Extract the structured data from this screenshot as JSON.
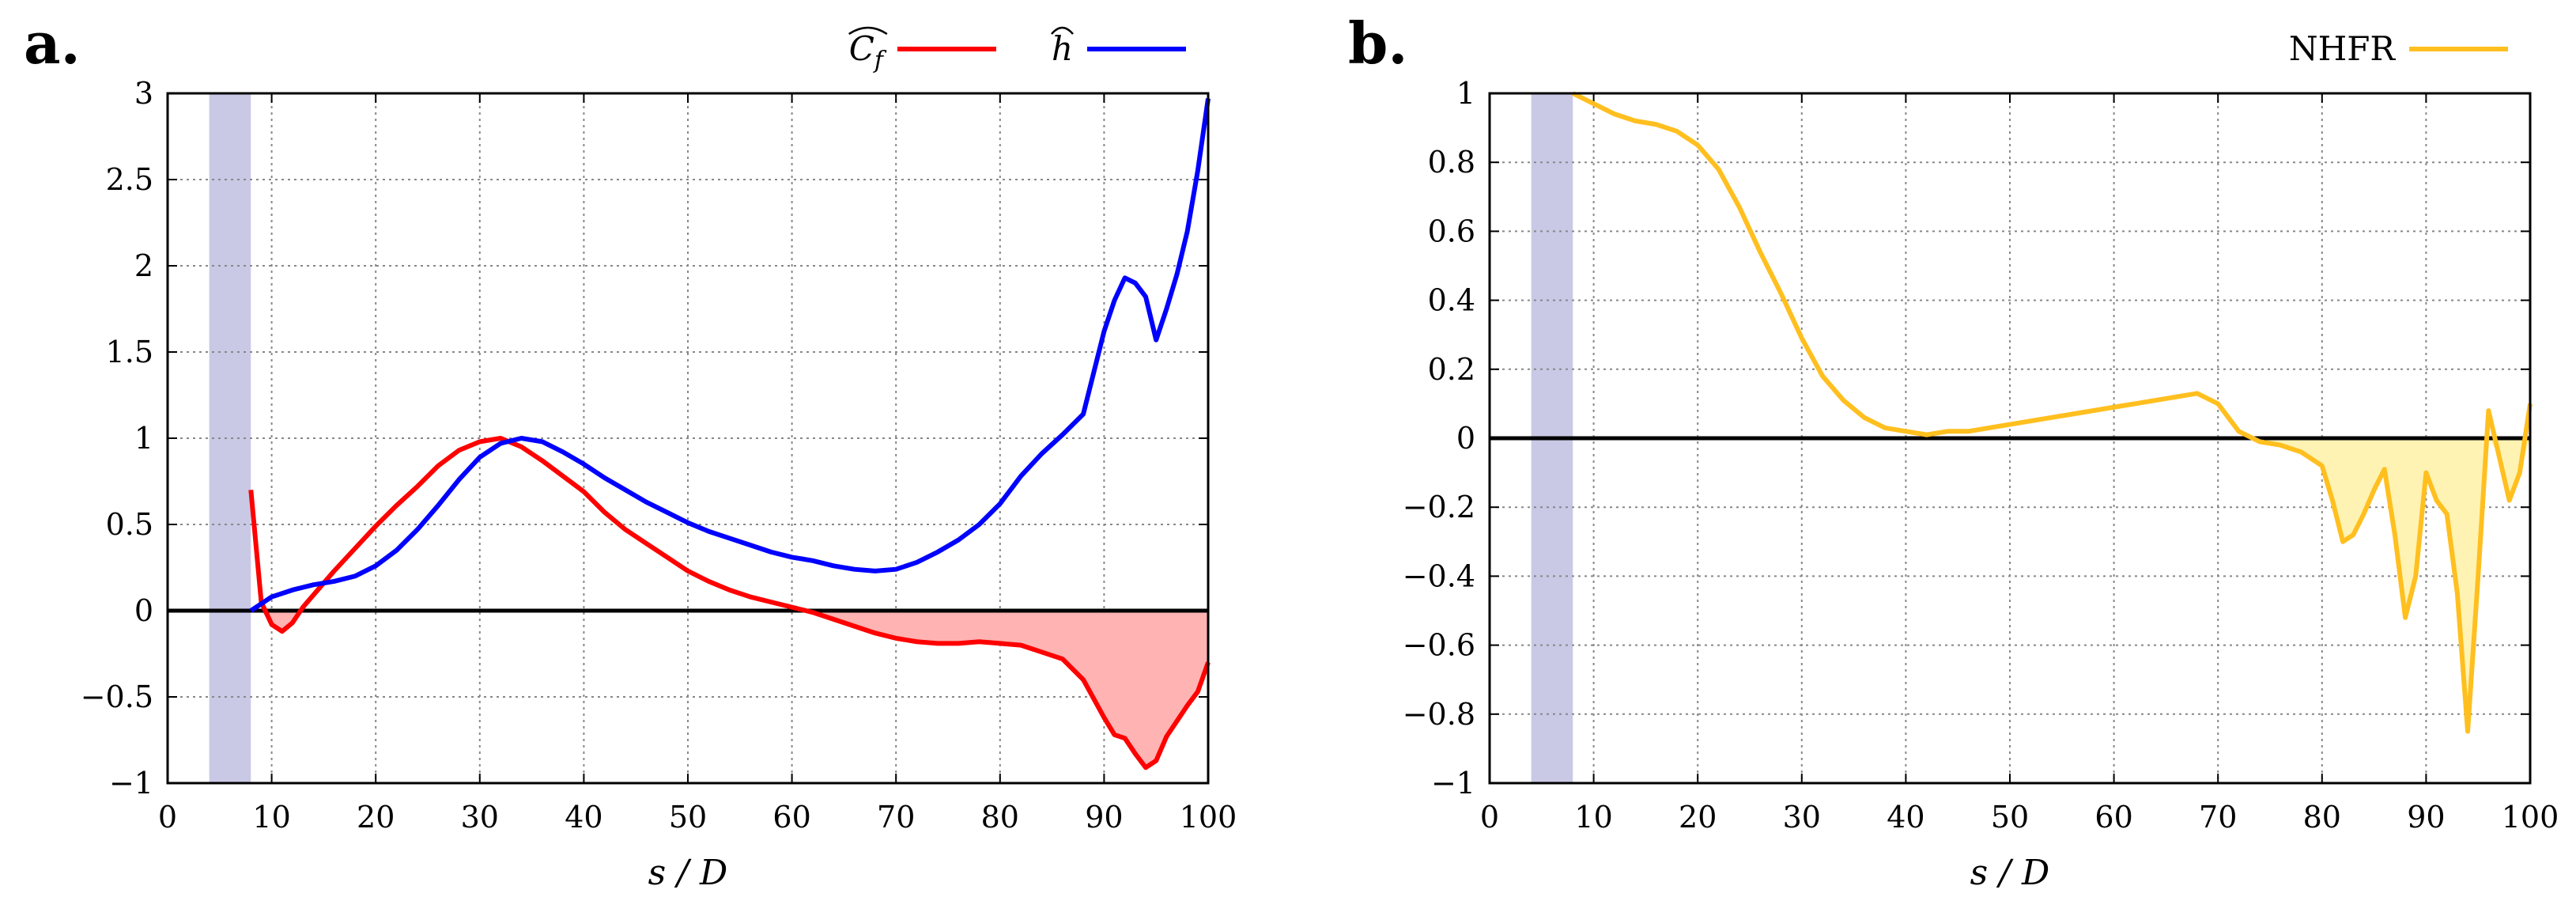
{
  "chart_data": [
    {
      "type": "line",
      "panel_label": "a.",
      "xlabel": "s / D",
      "ylabel": "",
      "xlim": [
        0,
        100
      ],
      "ylim": [
        -1,
        3
      ],
      "xticks": [
        "0",
        "10",
        "20",
        "30",
        "40",
        "50",
        "60",
        "70",
        "80",
        "90",
        "100"
      ],
      "yticks": [
        "−1",
        "−0.5",
        "0",
        "0.5",
        "1",
        "1.5",
        "2",
        "2.5",
        "3"
      ],
      "grid": true,
      "legend_position": "top-right",
      "shaded_band": {
        "x_start": 4,
        "x_end": 8,
        "color": "#c9c9e6"
      },
      "colors": {
        "cf": "#ff0000",
        "h": "#0000ff",
        "cf_fill": "#ffb3b3"
      },
      "series": [
        {
          "name": "Ĉf",
          "legend_label": "C",
          "legend_sub": "f",
          "color": "#ff0000",
          "fill_negative": true,
          "x": [
            8,
            9,
            10,
            11,
            12,
            13,
            14,
            15,
            16,
            18,
            20,
            22,
            24,
            26,
            28,
            30,
            32,
            34,
            36,
            38,
            40,
            42,
            44,
            46,
            48,
            50,
            52,
            54,
            56,
            58,
            60,
            62,
            64,
            66,
            68,
            70,
            72,
            74,
            76,
            78,
            80,
            82,
            84,
            86,
            88,
            90,
            91,
            92,
            93,
            94,
            95,
            96,
            97,
            98,
            99,
            100
          ],
          "values": [
            0.7,
            0.05,
            -0.08,
            -0.12,
            -0.07,
            0.02,
            0.09,
            0.16,
            0.23,
            0.36,
            0.49,
            0.61,
            0.72,
            0.84,
            0.93,
            0.98,
            1.0,
            0.95,
            0.87,
            0.78,
            0.69,
            0.57,
            0.47,
            0.39,
            0.31,
            0.23,
            0.17,
            0.12,
            0.08,
            0.05,
            0.02,
            -0.01,
            -0.05,
            -0.09,
            -0.13,
            -0.16,
            -0.18,
            -0.19,
            -0.19,
            -0.18,
            -0.19,
            -0.2,
            -0.24,
            -0.28,
            -0.4,
            -0.62,
            -0.72,
            -0.74,
            -0.83,
            -0.91,
            -0.87,
            -0.73,
            -0.64,
            -0.55,
            -0.47,
            -0.3
          ]
        },
        {
          "name": "ĥ",
          "legend_label": "h",
          "legend_sub": "",
          "color": "#0000ff",
          "fill_negative": false,
          "x": [
            8,
            10,
            12,
            14,
            16,
            18,
            20,
            22,
            24,
            26,
            28,
            30,
            32,
            34,
            36,
            38,
            40,
            42,
            44,
            46,
            48,
            50,
            52,
            54,
            56,
            58,
            60,
            62,
            64,
            66,
            68,
            70,
            72,
            74,
            76,
            78,
            80,
            82,
            84,
            86,
            88,
            89,
            90,
            91,
            92,
            93,
            94,
            95,
            96,
            97,
            98,
            99,
            100
          ],
          "values": [
            0.0,
            0.08,
            0.12,
            0.15,
            0.17,
            0.2,
            0.26,
            0.35,
            0.47,
            0.61,
            0.76,
            0.89,
            0.97,
            1.0,
            0.98,
            0.92,
            0.85,
            0.77,
            0.7,
            0.63,
            0.57,
            0.51,
            0.46,
            0.42,
            0.38,
            0.34,
            0.31,
            0.29,
            0.26,
            0.24,
            0.23,
            0.24,
            0.28,
            0.34,
            0.41,
            0.5,
            0.62,
            0.78,
            0.91,
            1.02,
            1.14,
            1.38,
            1.62,
            1.8,
            1.93,
            1.9,
            1.82,
            1.57,
            1.75,
            1.95,
            2.2,
            2.55,
            2.97
          ]
        }
      ]
    },
    {
      "type": "line",
      "panel_label": "b.",
      "xlabel": "s / D",
      "ylabel": "",
      "xlim": [
        0,
        100
      ],
      "ylim": [
        -1,
        1
      ],
      "xticks": [
        "0",
        "10",
        "20",
        "30",
        "40",
        "50",
        "60",
        "70",
        "80",
        "90",
        "100"
      ],
      "yticks": [
        "−1",
        "−0.8",
        "−0.6",
        "−0.4",
        "−0.2",
        "0",
        "0.2",
        "0.4",
        "0.6",
        "0.8",
        "1"
      ],
      "grid": true,
      "legend_position": "top-right",
      "shaded_band": {
        "x_start": 4,
        "x_end": 8,
        "color": "#c9c9e6"
      },
      "colors": {
        "nhfr": "#ffbf1f",
        "nhfr_fill": "#fff3b3"
      },
      "series": [
        {
          "name": "NHFR",
          "legend_label": "NHFR",
          "legend_sub": "",
          "color": "#ffbf1f",
          "fill_negative": true,
          "x": [
            8,
            10,
            12,
            14,
            16,
            18,
            20,
            22,
            24,
            26,
            28,
            30,
            32,
            34,
            36,
            38,
            40,
            42,
            44,
            46,
            48,
            50,
            52,
            54,
            56,
            58,
            60,
            62,
            64,
            66,
            68,
            70,
            72,
            74,
            76,
            78,
            80,
            81,
            82,
            83,
            84,
            85,
            86,
            87,
            88,
            89,
            90,
            91,
            92,
            93,
            94,
            95,
            96,
            97,
            98,
            99,
            100
          ],
          "values": [
            1.0,
            0.97,
            0.94,
            0.92,
            0.91,
            0.89,
            0.85,
            0.78,
            0.67,
            0.54,
            0.42,
            0.29,
            0.18,
            0.11,
            0.06,
            0.03,
            0.02,
            0.01,
            0.02,
            0.02,
            0.03,
            0.04,
            0.05,
            0.06,
            0.07,
            0.08,
            0.09,
            0.1,
            0.11,
            0.12,
            0.13,
            0.1,
            0.02,
            -0.01,
            -0.02,
            -0.04,
            -0.08,
            -0.18,
            -0.3,
            -0.28,
            -0.22,
            -0.15,
            -0.09,
            -0.28,
            -0.52,
            -0.4,
            -0.1,
            -0.18,
            -0.22,
            -0.45,
            -0.85,
            -0.4,
            0.08,
            -0.05,
            -0.18,
            -0.1,
            0.1
          ]
        }
      ]
    }
  ]
}
